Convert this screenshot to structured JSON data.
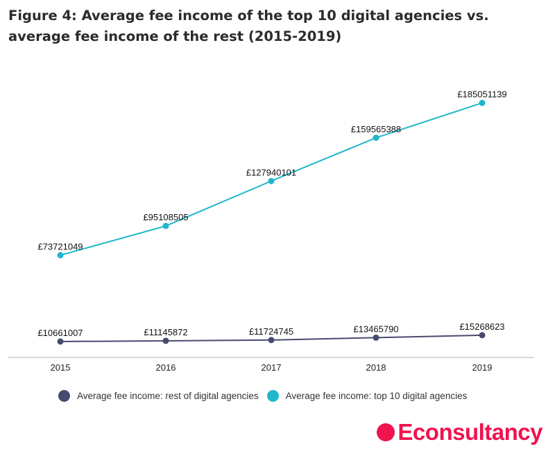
{
  "title": "Figure 4: Average fee income of the top 10 digital agencies vs. average fee income of the rest (2015-2019)",
  "chart_data": {
    "type": "line",
    "title": "Figure 4: Average fee income of the top 10 digital agencies vs. average fee income of the rest (2015-2019)",
    "categories": [
      "2015",
      "2016",
      "2017",
      "2018",
      "2019"
    ],
    "ylim": [
      0,
      200000000
    ],
    "grid": false,
    "legend_position": "bottom",
    "series": [
      {
        "name": "Average fee income: rest of digital agencies",
        "color": "#474a6e",
        "values": [
          10661007,
          11145872,
          11724745,
          13465790,
          15268623
        ],
        "labels": [
          "£10661007",
          "£11145872",
          "£11724745",
          "£13465790",
          "£15268623"
        ]
      },
      {
        "name": "Average fee income: top 10 digital agencies",
        "color": "#1fb7cc",
        "values": [
          73721049,
          95108505,
          127940101,
          159565388,
          185051139
        ],
        "labels": [
          "£73721049",
          "£95108505",
          "£127940101",
          "£159565388",
          "£185051139"
        ]
      }
    ]
  },
  "logo": {
    "text": "Econsultancy",
    "color": "#f0134d"
  }
}
